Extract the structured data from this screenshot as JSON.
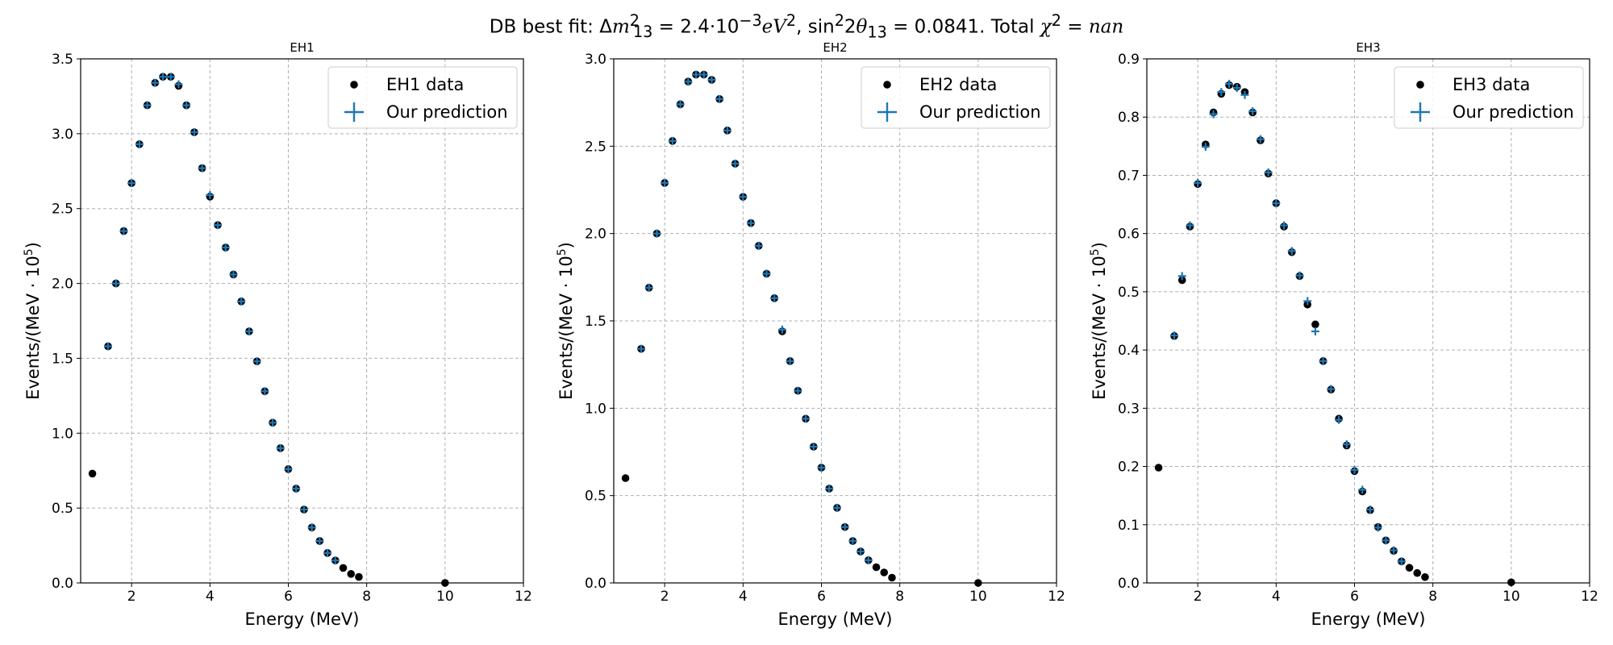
{
  "figure": {
    "suptitle_parts": {
      "prefix": "DB best fit: Δ",
      "m": "m",
      "sub13a": "13",
      "sup2a": "2",
      "eq1": " = 2.4·10",
      "exp": "−3",
      "ev": "eV",
      "sup2b": "2",
      "sep": ", sin",
      "sup2c": "2",
      "two_theta": "2",
      "theta": "θ",
      "sub13b": "13",
      "eq2": " = 0.0841. Total ",
      "chi": "χ",
      "sup2d": "2",
      "eq3": " = ",
      "nan": "nan"
    }
  },
  "colors": {
    "data": "#000000",
    "prediction": "#1f77b4",
    "grid": "#b0b0b0"
  },
  "chart_data": [
    {
      "type": "scatter",
      "title": "EH1",
      "xlabel": "Energy (MeV)",
      "ylabel_main": "Events/(MeV · 10",
      "ylabel_sup": "5",
      "ylabel_close": ")",
      "xlim": [
        0.7,
        12
      ],
      "ylim": [
        0,
        3.5
      ],
      "xticks": [
        2,
        4,
        6,
        8,
        10,
        12
      ],
      "yticks": [
        0.0,
        0.5,
        1.0,
        1.5,
        2.0,
        2.5,
        3.0,
        3.5
      ],
      "ytick_labels": [
        "0.0",
        "0.5",
        "1.0",
        "1.5",
        "2.0",
        "2.5",
        "3.0",
        "3.5"
      ],
      "grid": true,
      "legend": "top-right",
      "series": [
        {
          "name": "EH1 data",
          "marker": "dot",
          "x": [
            1.0,
            1.4,
            1.6,
            1.8,
            2.0,
            2.2,
            2.4,
            2.6,
            2.8,
            3.0,
            3.2,
            3.4,
            3.6,
            3.8,
            4.0,
            4.2,
            4.4,
            4.6,
            4.8,
            5.0,
            5.2,
            5.4,
            5.6,
            5.8,
            6.0,
            6.2,
            6.4,
            6.6,
            6.8,
            7.0,
            7.2,
            7.4,
            7.6,
            7.8,
            10.0
          ],
          "y": [
            0.73,
            1.58,
            2.0,
            2.35,
            2.67,
            2.93,
            3.19,
            3.34,
            3.38,
            3.38,
            3.32,
            3.19,
            3.01,
            2.77,
            2.58,
            2.39,
            2.24,
            2.06,
            1.88,
            1.68,
            1.48,
            1.28,
            1.07,
            0.9,
            0.76,
            0.63,
            0.49,
            0.37,
            0.28,
            0.2,
            0.15,
            0.1,
            0.06,
            0.04,
            0.0
          ]
        },
        {
          "name": "Our prediction",
          "marker": "plus",
          "x": [
            1.4,
            1.6,
            1.8,
            2.0,
            2.2,
            2.4,
            2.6,
            2.8,
            3.0,
            3.2,
            3.4,
            3.6,
            3.8,
            4.0,
            4.2,
            4.4,
            4.6,
            4.8,
            5.0,
            5.2,
            5.4,
            5.6,
            5.8,
            6.0,
            6.2,
            6.4,
            6.6,
            6.8,
            7.0,
            7.2
          ],
          "y": [
            1.58,
            2.0,
            2.35,
            2.67,
            2.93,
            3.19,
            3.34,
            3.38,
            3.38,
            3.33,
            3.19,
            3.01,
            2.77,
            2.59,
            2.39,
            2.24,
            2.06,
            1.88,
            1.68,
            1.48,
            1.28,
            1.07,
            0.9,
            0.76,
            0.63,
            0.49,
            0.37,
            0.28,
            0.2,
            0.15
          ]
        }
      ]
    },
    {
      "type": "scatter",
      "title": "EH2",
      "xlabel": "Energy (MeV)",
      "ylabel_main": "Events/(MeV · 10",
      "ylabel_sup": "5",
      "ylabel_close": ")",
      "xlim": [
        0.7,
        12
      ],
      "ylim": [
        0,
        3.0
      ],
      "xticks": [
        2,
        4,
        6,
        8,
        10,
        12
      ],
      "yticks": [
        0.0,
        0.5,
        1.0,
        1.5,
        2.0,
        2.5,
        3.0
      ],
      "ytick_labels": [
        "0.0",
        "0.5",
        "1.0",
        "1.5",
        "2.0",
        "2.5",
        "3.0"
      ],
      "grid": true,
      "legend": "top-right",
      "series": [
        {
          "name": "EH2 data",
          "marker": "dot",
          "x": [
            1.0,
            1.4,
            1.6,
            1.8,
            2.0,
            2.2,
            2.4,
            2.6,
            2.8,
            3.0,
            3.2,
            3.4,
            3.6,
            3.8,
            4.0,
            4.2,
            4.4,
            4.6,
            4.8,
            5.0,
            5.2,
            5.4,
            5.6,
            5.8,
            6.0,
            6.2,
            6.4,
            6.6,
            6.8,
            7.0,
            7.2,
            7.4,
            7.6,
            7.8,
            10.0
          ],
          "y": [
            0.6,
            1.34,
            1.69,
            2.0,
            2.29,
            2.53,
            2.74,
            2.87,
            2.91,
            2.91,
            2.88,
            2.77,
            2.59,
            2.4,
            2.21,
            2.06,
            1.93,
            1.77,
            1.63,
            1.44,
            1.27,
            1.1,
            0.94,
            0.78,
            0.66,
            0.54,
            0.43,
            0.32,
            0.24,
            0.18,
            0.13,
            0.09,
            0.06,
            0.03,
            0.0
          ]
        },
        {
          "name": "Our prediction",
          "marker": "plus",
          "x": [
            1.4,
            1.6,
            1.8,
            2.0,
            2.2,
            2.4,
            2.6,
            2.8,
            3.0,
            3.2,
            3.4,
            3.6,
            3.8,
            4.0,
            4.2,
            4.4,
            4.6,
            4.8,
            5.0,
            5.2,
            5.4,
            5.6,
            5.8,
            6.0,
            6.2,
            6.4,
            6.6,
            6.8,
            7.0,
            7.2
          ],
          "y": [
            1.34,
            1.69,
            2.0,
            2.29,
            2.53,
            2.74,
            2.87,
            2.91,
            2.91,
            2.88,
            2.77,
            2.59,
            2.4,
            2.21,
            2.06,
            1.93,
            1.77,
            1.63,
            1.45,
            1.27,
            1.1,
            0.94,
            0.78,
            0.66,
            0.54,
            0.43,
            0.32,
            0.24,
            0.18,
            0.13
          ]
        }
      ]
    },
    {
      "type": "scatter",
      "title": "EH3",
      "xlabel": "Energy (MeV)",
      "ylabel_main": "Events/(MeV · 10",
      "ylabel_sup": "5",
      "ylabel_close": ")",
      "xlim": [
        0.7,
        12
      ],
      "ylim": [
        0,
        0.9
      ],
      "xticks": [
        2,
        4,
        6,
        8,
        10,
        12
      ],
      "yticks": [
        0.0,
        0.1,
        0.2,
        0.3,
        0.4,
        0.5,
        0.6,
        0.7,
        0.8,
        0.9
      ],
      "ytick_labels": [
        "0.0",
        "0.1",
        "0.2",
        "0.3",
        "0.4",
        "0.5",
        "0.6",
        "0.7",
        "0.8",
        "0.9"
      ],
      "grid": true,
      "legend": "top-right",
      "series": [
        {
          "name": "EH3 data",
          "marker": "dot",
          "x": [
            1.0,
            1.4,
            1.6,
            1.8,
            2.0,
            2.2,
            2.4,
            2.6,
            2.8,
            3.0,
            3.2,
            3.4,
            3.6,
            3.8,
            4.0,
            4.2,
            4.4,
            4.6,
            4.8,
            5.0,
            5.2,
            5.4,
            5.6,
            5.8,
            6.0,
            6.2,
            6.4,
            6.6,
            6.8,
            7.0,
            7.2,
            7.4,
            7.6,
            7.8,
            10.0
          ],
          "y": [
            0.198,
            0.424,
            0.52,
            0.612,
            0.685,
            0.753,
            0.808,
            0.84,
            0.855,
            0.852,
            0.843,
            0.808,
            0.76,
            0.703,
            0.652,
            0.612,
            0.568,
            0.527,
            0.478,
            0.444,
            0.381,
            0.332,
            0.282,
            0.236,
            0.192,
            0.157,
            0.125,
            0.096,
            0.073,
            0.055,
            0.037,
            0.026,
            0.017,
            0.01,
            0.001
          ]
        },
        {
          "name": "Our prediction",
          "marker": "plus",
          "x": [
            1.4,
            1.6,
            1.8,
            2.0,
            2.2,
            2.4,
            2.6,
            2.8,
            3.0,
            3.2,
            3.4,
            3.6,
            3.8,
            4.0,
            4.2,
            4.4,
            4.6,
            4.8,
            5.0,
            5.2,
            5.4,
            5.6,
            5.8,
            6.0,
            6.2,
            6.4,
            6.6,
            6.8,
            7.0,
            7.2
          ],
          "y": [
            0.425,
            0.527,
            0.614,
            0.687,
            0.749,
            0.805,
            0.843,
            0.857,
            0.85,
            0.838,
            0.81,
            0.762,
            0.705,
            0.652,
            0.614,
            0.57,
            0.528,
            0.484,
            0.432,
            0.381,
            0.333,
            0.28,
            0.238,
            0.194,
            0.16,
            0.126,
            0.095,
            0.073,
            0.056,
            0.037
          ]
        }
      ]
    }
  ]
}
